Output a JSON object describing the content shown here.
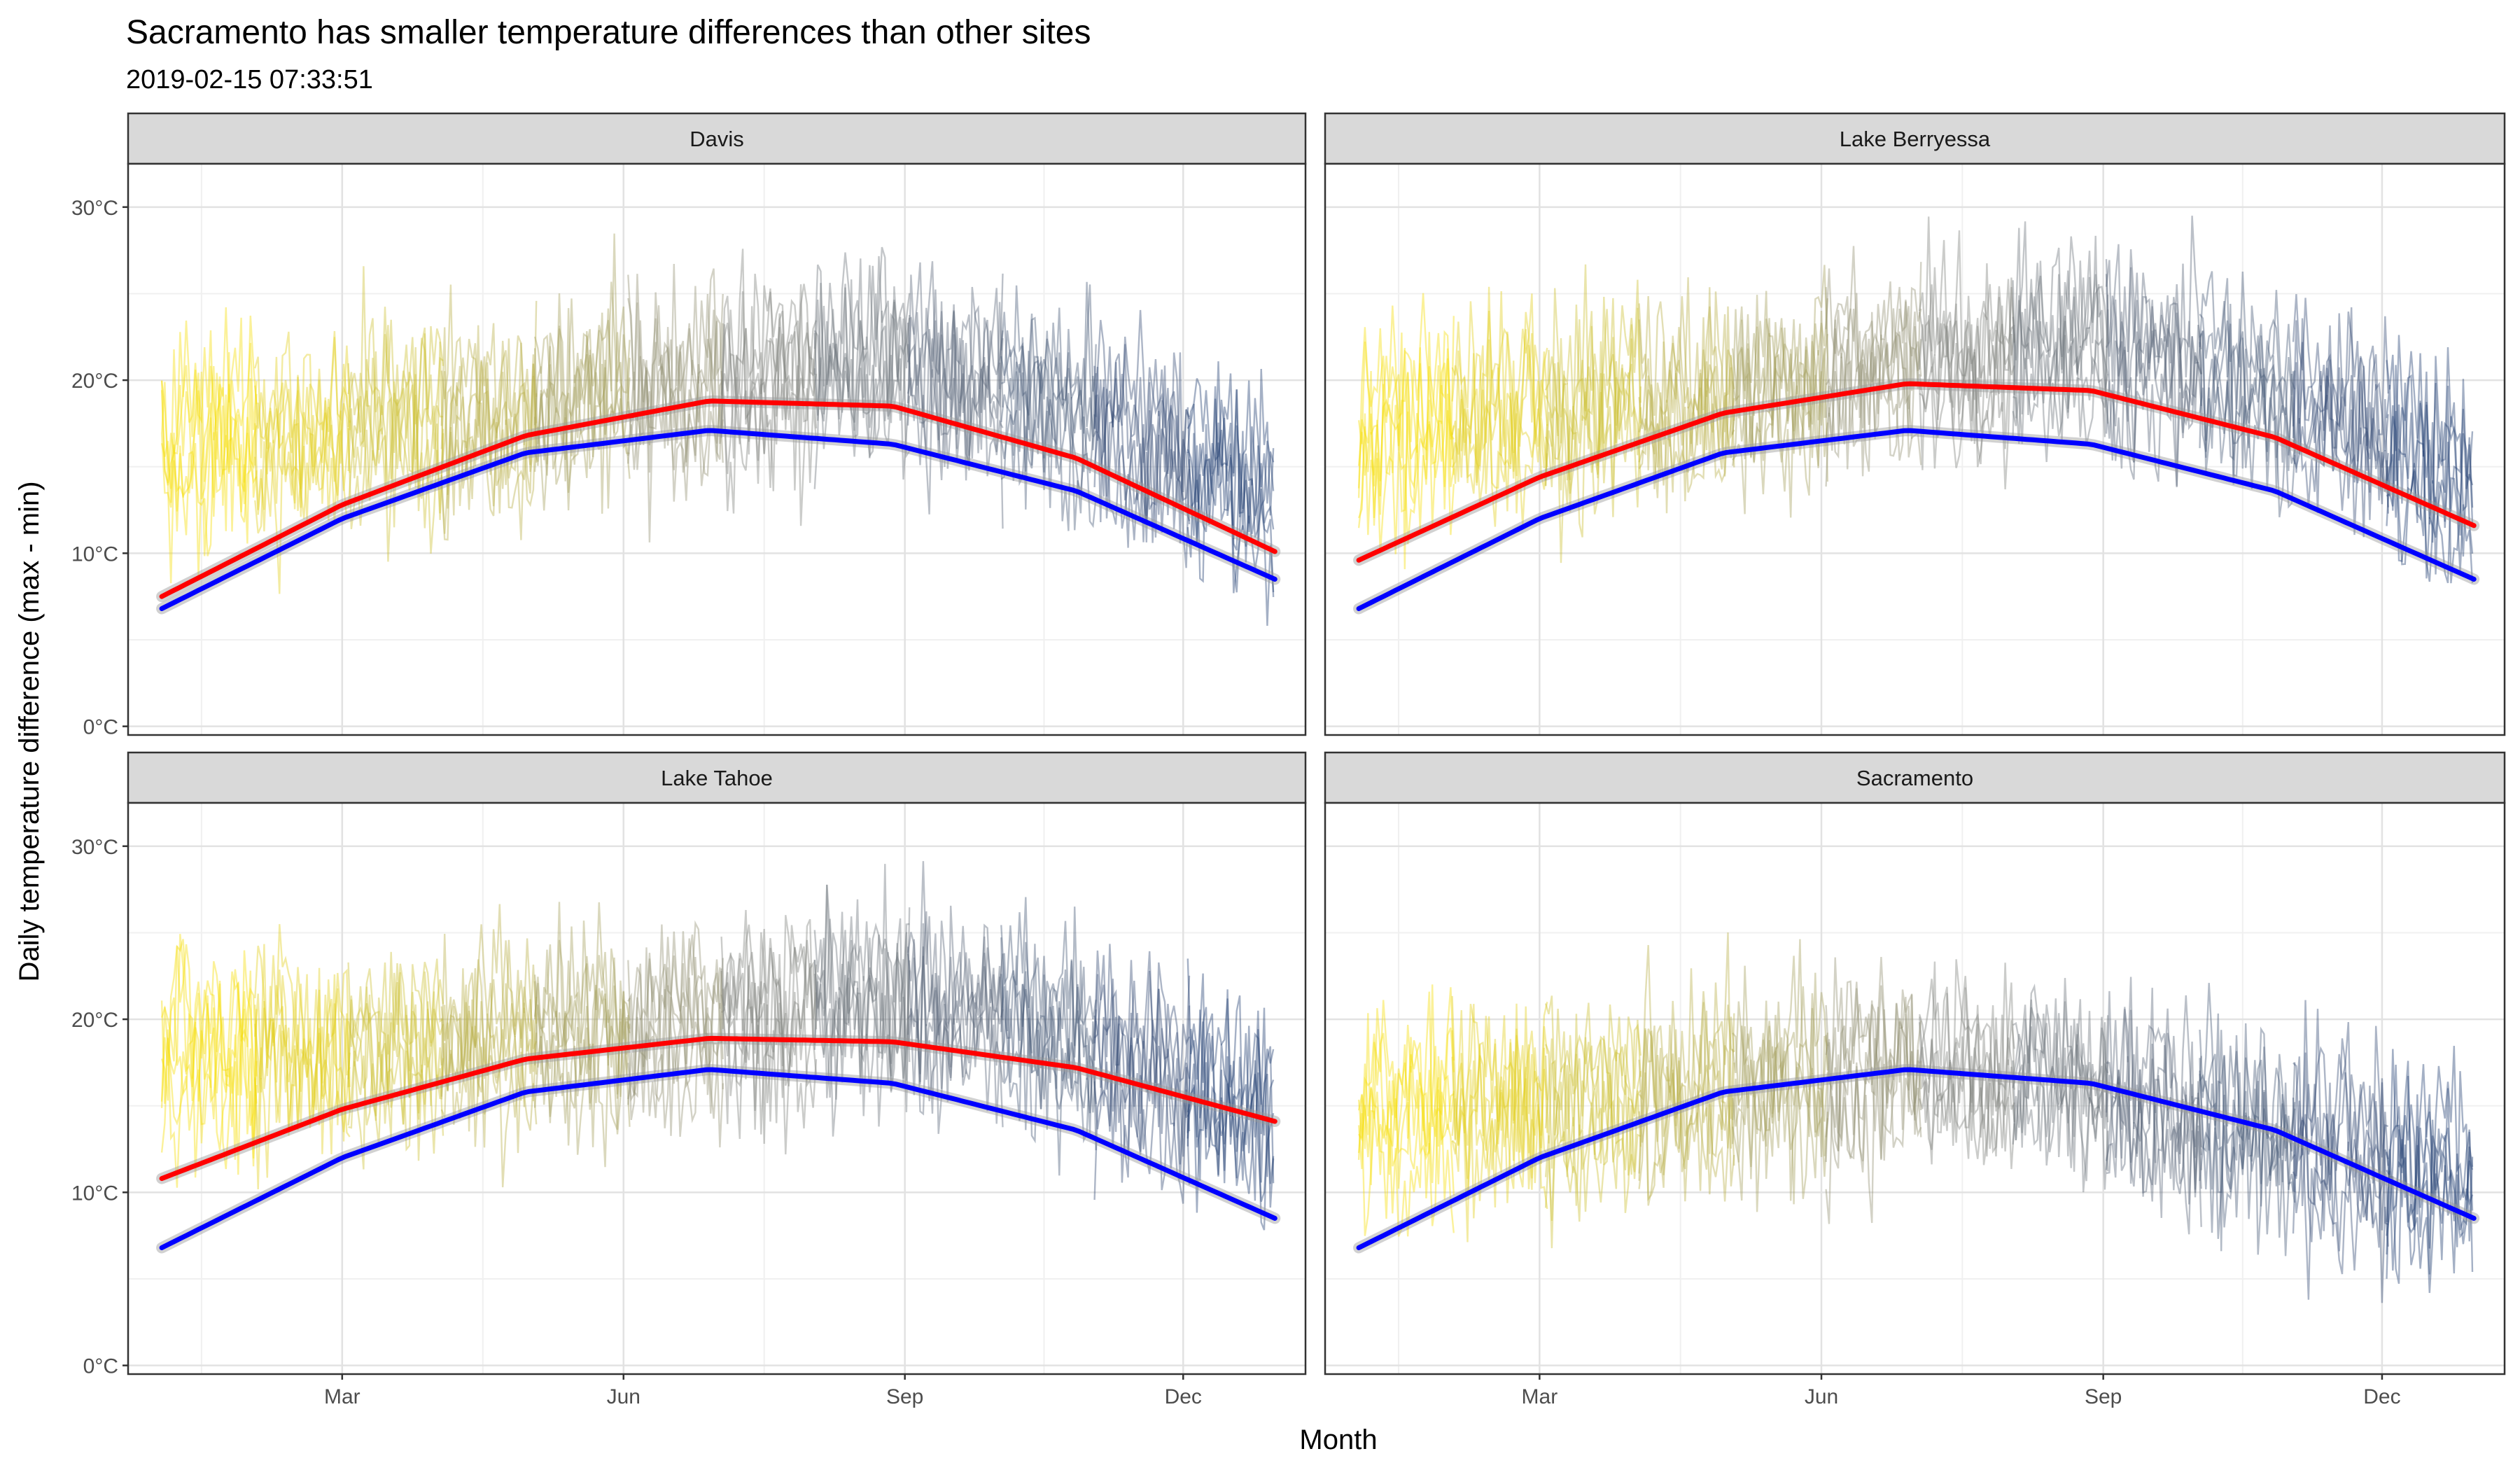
{
  "title": "Sacramento has smaller temperature differences than other sites",
  "subtitle": "2019-02-15 07:33:51",
  "chart_data": {
    "type": "line",
    "xlabel": "Month",
    "ylabel": "Daily temperature difference (max - min)",
    "x_ticks": [
      {
        "label": "Mar",
        "day": 60
      },
      {
        "label": "Jun",
        "day": 152
      },
      {
        "label": "Sep",
        "day": 244
      },
      {
        "label": "Dec",
        "day": 335
      }
    ],
    "xlim": [
      -10,
      375
    ],
    "y_ticks": [
      {
        "label": "0°C",
        "value": 0
      },
      {
        "label": "10°C",
        "value": 10
      },
      {
        "label": "20°C",
        "value": 20
      },
      {
        "label": "30°C",
        "value": 30
      }
    ],
    "ylim": [
      -0.5,
      32.5
    ],
    "grid": true,
    "line_colors": {
      "start": "#FFE600",
      "mid": "#8C8C82",
      "end": "#1F3C73"
    },
    "blue_fit": {
      "color": "#0000FF",
      "points": [
        [
          1,
          6.8
        ],
        [
          60,
          12.0
        ],
        [
          120,
          15.8
        ],
        [
          180,
          17.1
        ],
        [
          240,
          16.3
        ],
        [
          300,
          13.6
        ],
        [
          365,
          8.5
        ]
      ]
    },
    "facets": [
      {
        "name": "Davis",
        "red_fit": {
          "color": "#FF0000",
          "points": [
            [
              1,
              7.5
            ],
            [
              60,
              12.8
            ],
            [
              120,
              16.8
            ],
            [
              180,
              18.8
            ],
            [
              240,
              18.5
            ],
            [
              300,
              15.5
            ],
            [
              365,
              10.1
            ]
          ]
        },
        "noise": [
          [
            1,
            16
          ],
          [
            60,
            17
          ],
          [
            120,
            18
          ],
          [
            180,
            20
          ],
          [
            240,
            21
          ],
          [
            300,
            18
          ],
          [
            365,
            13
          ]
        ]
      },
      {
        "name": "Lake Berryessa",
        "red_fit": {
          "color": "#FF0000",
          "points": [
            [
              1,
              9.6
            ],
            [
              60,
              14.4
            ],
            [
              120,
              18.1
            ],
            [
              180,
              19.8
            ],
            [
              240,
              19.4
            ],
            [
              300,
              16.7
            ],
            [
              365,
              11.6
            ]
          ]
        },
        "noise": [
          [
            1,
            17
          ],
          [
            60,
            18
          ],
          [
            120,
            19
          ],
          [
            180,
            21
          ],
          [
            240,
            22
          ],
          [
            300,
            19
          ],
          [
            365,
            14
          ]
        ]
      },
      {
        "name": "Lake Tahoe",
        "red_fit": {
          "color": "#FF0000",
          "points": [
            [
              1,
              10.8
            ],
            [
              60,
              14.8
            ],
            [
              120,
              17.7
            ],
            [
              180,
              18.9
            ],
            [
              240,
              18.7
            ],
            [
              300,
              17.2
            ],
            [
              365,
              14.1
            ]
          ]
        },
        "noise": [
          [
            1,
            18
          ],
          [
            60,
            18
          ],
          [
            120,
            19
          ],
          [
            180,
            20
          ],
          [
            240,
            21
          ],
          [
            300,
            19
          ],
          [
            365,
            14
          ]
        ]
      },
      {
        "name": "Sacramento",
        "red_fit": null,
        "noise": [
          [
            1,
            15
          ],
          [
            60,
            15
          ],
          [
            120,
            16
          ],
          [
            180,
            17
          ],
          [
            240,
            16
          ],
          [
            300,
            13
          ],
          [
            365,
            10
          ]
        ]
      }
    ]
  }
}
